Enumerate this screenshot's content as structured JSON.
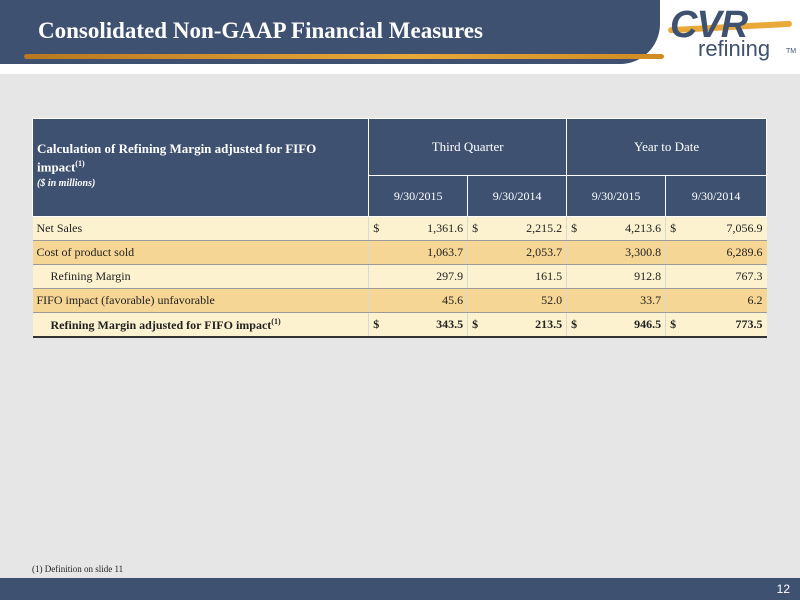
{
  "slide": {
    "title": "Consolidated Non-GAAP Financial Measures",
    "page_number": "12",
    "footnote": "(1)    Definition on slide 11"
  },
  "logo": {
    "text_top": "CVR",
    "text_bottom": "refining",
    "tm": "TM"
  },
  "table": {
    "header_title": "Calculation of Refining Margin adjusted for FIFO impact",
    "header_title_sup": "(1)",
    "header_subtitle": "($ in millions)",
    "groups": [
      "Third Quarter",
      "Year to Date"
    ],
    "dates": [
      "9/30/2015",
      "9/30/2014",
      "9/30/2015",
      "9/30/2014"
    ],
    "rows": [
      {
        "label": "Net Sales",
        "values": [
          "1,361.6",
          "2,215.2",
          "4,213.6",
          "7,056.9"
        ],
        "currency": "$"
      },
      {
        "label": "Cost of product sold",
        "values": [
          "1,063.7",
          "2,053.7",
          "3,300.8",
          "6,289.6"
        ]
      },
      {
        "label": "Refining Margin",
        "values": [
          "297.9",
          "161.5",
          "912.8",
          "767.3"
        ]
      },
      {
        "label": "FIFO impact (favorable) unfavorable",
        "values": [
          "45.6",
          "52.0",
          "33.7",
          "6.2"
        ]
      },
      {
        "label": "Refining Margin adjusted for FIFO impact",
        "label_sup": "(1)",
        "values": [
          "343.5",
          "213.5",
          "946.5",
          "773.5"
        ],
        "currency": "$"
      }
    ]
  }
}
